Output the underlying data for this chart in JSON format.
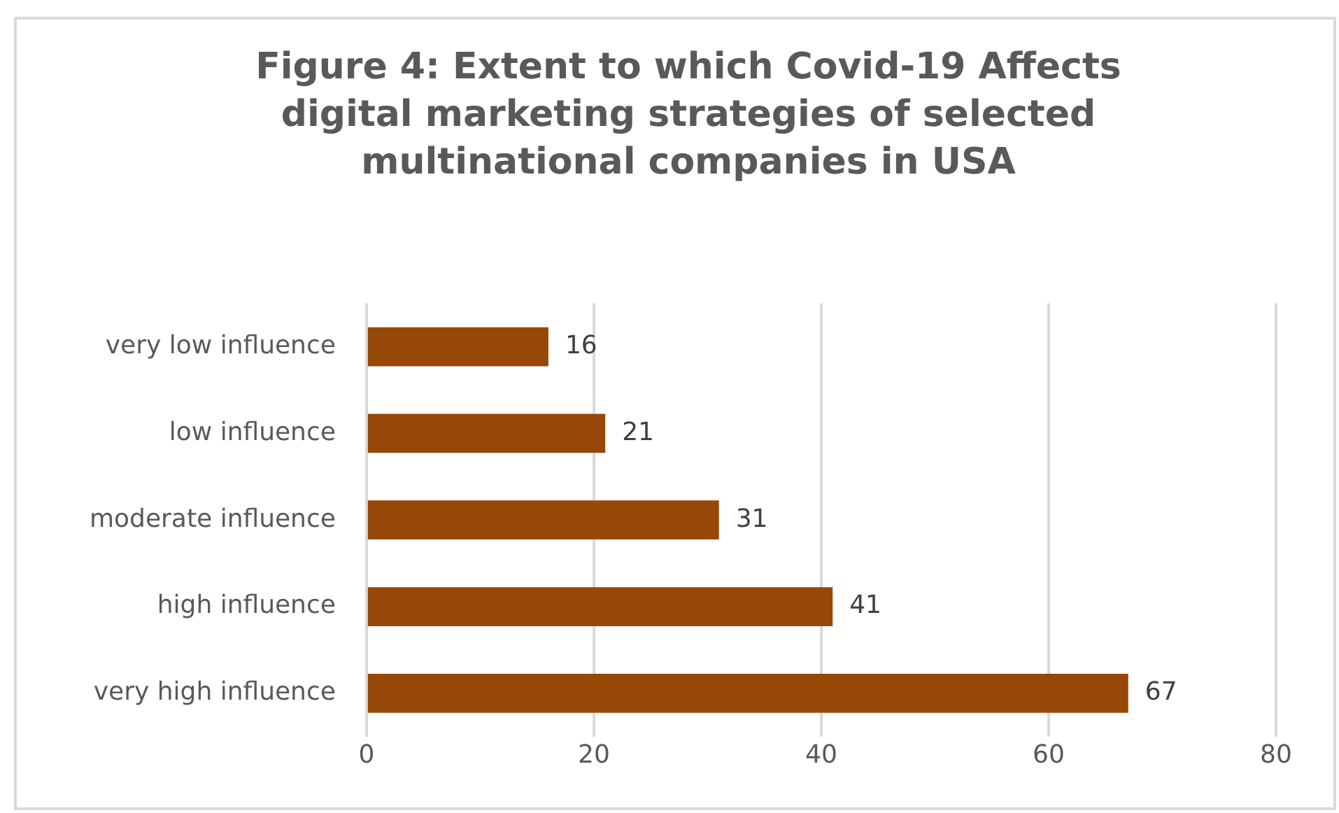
{
  "chart_data": {
    "type": "bar",
    "orientation": "horizontal",
    "title": "Figure 4: Extent to which Covid-19 Affects digital marketing strategies of selected multinational companies in USA",
    "categories": [
      "very low influence",
      "low influence",
      "moderate influence",
      "high influence",
      "very high influence"
    ],
    "values": [
      16,
      21,
      31,
      41,
      67
    ],
    "color": "#974706",
    "xlim": [
      0,
      80
    ],
    "xticks": [
      0,
      20,
      40,
      60,
      80
    ],
    "grid": "x",
    "data_labels": true,
    "legend": false
  }
}
